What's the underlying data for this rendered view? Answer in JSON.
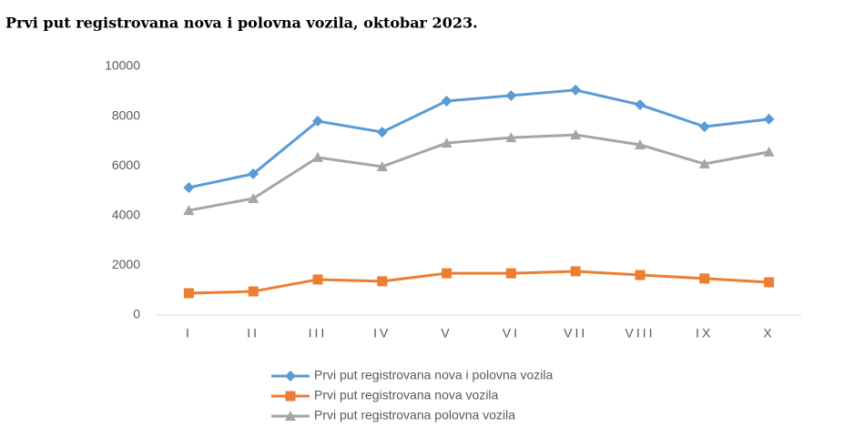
{
  "chart_data": {
    "type": "line",
    "title": "Prvi put registrovana nova i polovna vozila, oktobar 2023.",
    "categories": [
      "I",
      "II",
      "III",
      "IV",
      "V",
      "VI",
      "VII",
      "VIII",
      "IX",
      "X"
    ],
    "series": [
      {
        "name": "Prvi put registrovana nova i polovna vozila",
        "color": "#5b9bd5",
        "marker": "diamond",
        "values": [
          5130,
          5680,
          7800,
          7360,
          8610,
          8830,
          9050,
          8460,
          7580,
          7880
        ]
      },
      {
        "name": "Prvi put registrovana nova vozila",
        "color": "#ed7d31",
        "marker": "square",
        "values": [
          880,
          950,
          1430,
          1360,
          1680,
          1680,
          1760,
          1610,
          1470,
          1320
        ]
      },
      {
        "name": "Prvi put registrovana polovna vozila",
        "color": "#a5a5a5",
        "marker": "triangle",
        "values": [
          4210,
          4690,
          6340,
          5970,
          6920,
          7140,
          7250,
          6850,
          6080,
          6560
        ]
      }
    ],
    "ylim": [
      0,
      10000
    ],
    "yticks": [
      0,
      2000,
      4000,
      6000,
      8000,
      10000
    ],
    "grid": false,
    "legend": "bottom"
  }
}
